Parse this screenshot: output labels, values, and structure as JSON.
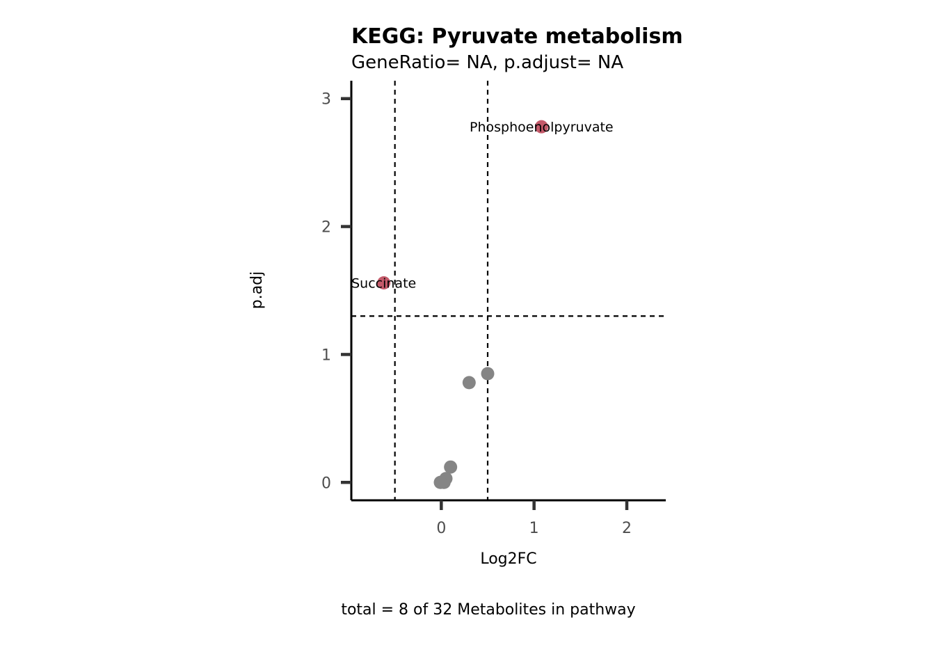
{
  "chart_data": {
    "type": "scatter",
    "title": "KEGG: Pyruvate metabolism",
    "subtitle": "GeneRatio= NA, p.adjust= NA",
    "xlabel": "Log2FC",
    "ylabel": "p.adj",
    "caption": "total = 8 of 32 Metabolites in pathway",
    "xlim": [
      -0.97,
      2.42
    ],
    "ylim": [
      -0.14,
      3.14
    ],
    "xticks": [
      0,
      1,
      2
    ],
    "yticks": [
      0,
      1,
      2,
      3
    ],
    "vlines": [
      -0.5,
      0.5
    ],
    "hline": 1.3,
    "grid": false,
    "colors": {
      "significant": "#c45a6a",
      "not_significant": "#858585"
    },
    "points": [
      {
        "x": -0.62,
        "y": 1.56,
        "label": "Succinate",
        "significant": true
      },
      {
        "x": 1.08,
        "y": 2.78,
        "label": "Phosphoenolpyruvate",
        "significant": true
      },
      {
        "x": 0.5,
        "y": 0.85,
        "significant": false
      },
      {
        "x": 0.3,
        "y": 0.78,
        "significant": false
      },
      {
        "x": 0.1,
        "y": 0.12,
        "significant": false
      },
      {
        "x": 0.05,
        "y": 0.03,
        "significant": false
      },
      {
        "x": 0.03,
        "y": 0.0,
        "significant": false
      },
      {
        "x": -0.01,
        "y": 0.0,
        "significant": false
      }
    ]
  }
}
